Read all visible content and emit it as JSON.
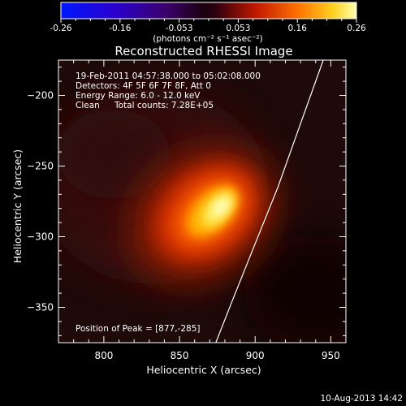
{
  "colorbar": {
    "ticks": [
      "-0.26",
      "-0.16",
      "-0.053",
      "0.053",
      "0.16",
      "0.26"
    ],
    "unit_label": "(photons cm⁻² s⁻¹ asec⁻²)",
    "range": [
      -0.26,
      0.26
    ]
  },
  "title": "Reconstructed RHESSI Image",
  "info": {
    "time_range": "19-Feb-2011 04:57:38.000 to 05:02:08.000",
    "detectors": "Detectors: 4F 5F 6F 7F 8F, Att 0",
    "energy": "Energy Range: 6.0 - 12.0 keV",
    "clean": "Clean",
    "total_counts": "Total counts: 7.28E+05",
    "peak": "Position of Peak = [877,-285]"
  },
  "x_axis": {
    "label": "Heliocentric X (arcsec)",
    "range": [
      770,
      960
    ],
    "ticks": [
      {
        "value": 800,
        "label": "800"
      },
      {
        "value": 850,
        "label": "850"
      },
      {
        "value": 900,
        "label": "900"
      },
      {
        "value": 950,
        "label": "950"
      }
    ]
  },
  "y_axis": {
    "label": "Heliocentric Y (arcsec)",
    "range": [
      -375,
      -175
    ],
    "ticks": [
      {
        "value": -200,
        "label": "−200"
      },
      {
        "value": -250,
        "label": "−250"
      },
      {
        "value": -300,
        "label": "−300"
      },
      {
        "value": -350,
        "label": "−350"
      }
    ]
  },
  "limb": [
    [
      945,
      -175
    ],
    [
      930,
      -220
    ],
    [
      915,
      -265
    ],
    [
      900,
      -305
    ],
    [
      885,
      -345
    ],
    [
      874,
      -375
    ]
  ],
  "peak": [
    877,
    -285
  ],
  "timestamp": "10-Aug-2013 14:42"
}
